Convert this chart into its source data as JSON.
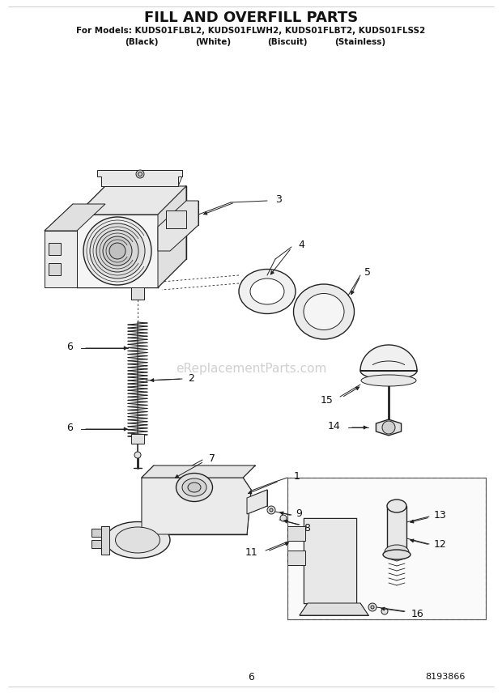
{
  "title": "FILL AND OVERFILL PARTS",
  "subtitle_line1": "For Models: KUDS01FLBL2, KUDS01FLWH2, KUDS01FLBT2, KUDS01FLSS2",
  "subtitle_line2_parts": [
    "(Black)",
    "(White)",
    "(Biscuit)",
    "(Stainless)"
  ],
  "page_number": "6",
  "part_number": "8193866",
  "watermark": "eReplacementParts.com",
  "bg": "#ffffff",
  "lc": "#222222",
  "tc": "#111111",
  "figsize": [
    6.2,
    8.56
  ],
  "dpi": 100
}
